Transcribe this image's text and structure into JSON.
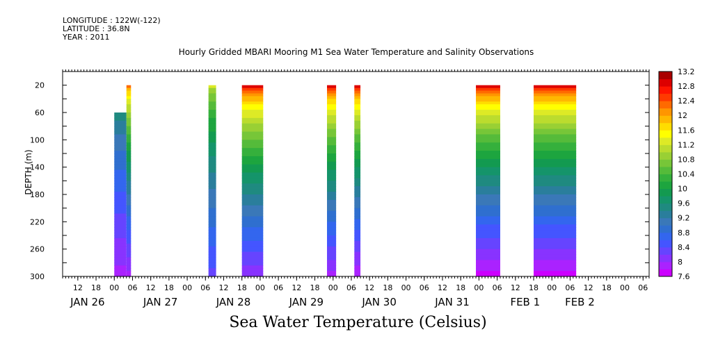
{
  "header": {
    "longitude": "LONGITUDE : 122W(-122)",
    "latitude": "LATITUDE : 36.8N",
    "year": "YEAR : 2011"
  },
  "chart_data": {
    "type": "heatmap",
    "title": "Hourly Gridded MBARI Mooring M1 Sea Water Temperature and Salinity Observations",
    "xlabel": "Sea Water Temperature (Celsius)",
    "ylabel": "DEPTH (m)",
    "x_range_hours_from_jan26_00": [
      -17,
      176
    ],
    "y_range_depth_m": [
      0,
      300
    ],
    "y_inverted": true,
    "x_hour_ticks": [
      "12",
      "18",
      "00",
      "06",
      "12",
      "18",
      "00",
      "06",
      "12",
      "18",
      "00",
      "06",
      "12",
      "18",
      "00",
      "06",
      "12",
      "18",
      "00",
      "06",
      "12",
      "18",
      "00",
      "06",
      "12",
      "18",
      "00",
      "06",
      "12",
      "18",
      "00",
      "06"
    ],
    "x_hour_tick_hours": [
      -12,
      -6,
      0,
      6,
      12,
      18,
      24,
      30,
      36,
      42,
      48,
      54,
      60,
      66,
      72,
      78,
      84,
      90,
      96,
      102,
      108,
      114,
      120,
      126,
      132,
      138,
      144,
      150,
      156,
      162,
      168,
      174
    ],
    "x_day_labels": [
      {
        "label": "JAN 26",
        "hour": -12
      },
      {
        "label": "JAN 27",
        "hour": 12
      },
      {
        "label": "JAN 28",
        "hour": 36
      },
      {
        "label": "JAN 29",
        "hour": 60
      },
      {
        "label": "JAN 30",
        "hour": 84
      },
      {
        "label": "JAN 31",
        "hour": 108
      },
      {
        "label": "FEB  1",
        "hour": 132
      },
      {
        "label": "FEB  2",
        "hour": 150
      }
    ],
    "y_ticks": [
      "20",
      "60",
      "100",
      "140",
      "180",
      "220",
      "260",
      "300"
    ],
    "y_tick_values": [
      20,
      60,
      100,
      140,
      180,
      220,
      260,
      300
    ],
    "colorbar": {
      "labels": [
        "7.6",
        "8",
        "8.4",
        "8.8",
        "9.2",
        "9.6",
        "10",
        "10.4",
        "10.8",
        "11.2",
        "11.6",
        "12",
        "12.4",
        "12.8",
        "13.2"
      ],
      "levels": [
        7.6,
        7.8,
        8.0,
        8.2,
        8.4,
        8.6,
        8.8,
        9.0,
        9.2,
        9.4,
        9.6,
        9.8,
        10.0,
        10.2,
        10.4,
        10.6,
        10.8,
        11.0,
        11.2,
        11.4,
        11.6,
        11.8,
        12.0,
        12.2,
        12.4,
        12.6,
        12.8,
        13.0,
        13.2
      ],
      "colors": [
        "#cc00ff",
        "#aa22ff",
        "#8833ff",
        "#6644ff",
        "#4455ff",
        "#3366ee",
        "#2f6fcf",
        "#3a78b8",
        "#2a7e9c",
        "#1f8a80",
        "#15946a",
        "#139a50",
        "#1da53f",
        "#35b03c",
        "#55bb3a",
        "#77c638",
        "#99d034",
        "#bbdc2e",
        "#ddea26",
        "#ffff00",
        "#ffdd00",
        "#ffb800",
        "#ff9500",
        "#ff6a00",
        "#ff3a00",
        "#ff1400",
        "#dd0000",
        "#aa0000"
      ]
    },
    "data_blocks": [
      {
        "start_hour": 0,
        "end_hour": 4,
        "depth_top": 60,
        "depth_bottom": 300,
        "surface_temp": 10.2,
        "bottom_temp": 7.9
      },
      {
        "start_hour": 4,
        "end_hour": 5.5,
        "depth_top": 20,
        "depth_bottom": 300,
        "surface_temp": 12.3,
        "bottom_temp": 7.9
      },
      {
        "start_hour": 31,
        "end_hour": 33.5,
        "depth_top": 20,
        "depth_bottom": 300,
        "surface_temp": 11.2,
        "bottom_temp": 8.3
      },
      {
        "start_hour": 42,
        "end_hour": 49,
        "depth_top": 20,
        "depth_bottom": 300,
        "surface_temp": 12.8,
        "bottom_temp": 8.0
      },
      {
        "start_hour": 70,
        "end_hour": 73,
        "depth_top": 20,
        "depth_bottom": 300,
        "surface_temp": 12.8,
        "bottom_temp": 7.9
      },
      {
        "start_hour": 79,
        "end_hour": 81,
        "depth_top": 20,
        "depth_bottom": 300,
        "surface_temp": 12.8,
        "bottom_temp": 7.8
      },
      {
        "start_hour": 119,
        "end_hour": 127,
        "depth_top": 20,
        "depth_bottom": 300,
        "surface_temp": 12.9,
        "bottom_temp": 7.7
      },
      {
        "start_hour": 138,
        "end_hour": 152,
        "depth_top": 20,
        "depth_bottom": 300,
        "surface_temp": 12.9,
        "bottom_temp": 7.7
      }
    ],
    "grid": false,
    "legend": "right colorbar"
  }
}
